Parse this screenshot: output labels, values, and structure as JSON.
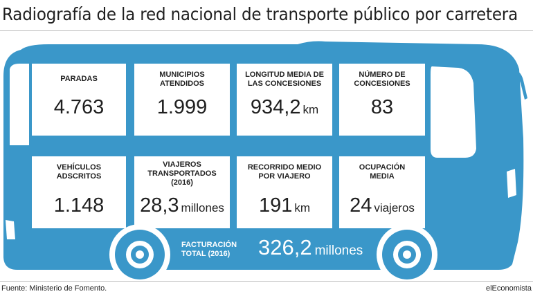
{
  "title": "Radiografía de la red nacional de transporte público por carretera",
  "colors": {
    "bus": "#3a97c9",
    "wheel_inner": "#ffffff"
  },
  "stats": [
    {
      "label": "PARADAS",
      "value": "4.763",
      "unit": ""
    },
    {
      "label": "MUNICIPIOS ATENDIDOS",
      "value": "1.999",
      "unit": ""
    },
    {
      "label": "LONGITUD MEDIA DE LAS CONCESIONES",
      "value": "934,2",
      "unit": "km"
    },
    {
      "label": "NÚMERO DE CONCESIONES",
      "value": "83",
      "unit": ""
    },
    {
      "label": "VEHÍCULOS ADSCRITOS",
      "value": "1.148",
      "unit": ""
    },
    {
      "label": "VIAJEROS TRANSPORTADOS (2016)",
      "value": "28,3",
      "unit": "millones"
    },
    {
      "label": "RECORRIDO MEDIO POR VIAJERO",
      "value": "191",
      "unit": "km"
    },
    {
      "label": "OCUPACIÓN MEDIA",
      "value": "24",
      "unit": "viajeros"
    }
  ],
  "facturacion": {
    "label": "FACTURACIÓN TOTAL (2016)",
    "value": "326,2",
    "unit": "millones"
  },
  "source": "Fuente: Ministerio de Fomento.",
  "brand": "elEconomista"
}
